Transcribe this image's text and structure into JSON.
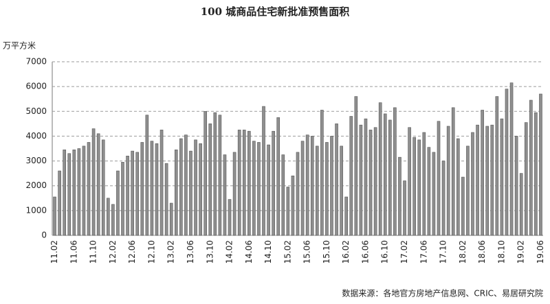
{
  "chart_data": {
    "type": "bar",
    "title": "100 城商品住宅新批准预售面积",
    "y_label": "万平方米",
    "source": "数据来源：各地官方房地产信息网、CRIC、易居研究院",
    "categories": [
      "11.02",
      null,
      null,
      null,
      "11.06",
      null,
      null,
      null,
      "11.10",
      null,
      null,
      null,
      "12.02",
      null,
      null,
      null,
      "12.06",
      null,
      null,
      null,
      "12.10",
      null,
      null,
      null,
      "13.02",
      null,
      null,
      null,
      "13.06",
      null,
      null,
      null,
      "13.10",
      null,
      null,
      null,
      "14.02",
      null,
      null,
      null,
      "14.06",
      null,
      null,
      null,
      "14.10",
      null,
      null,
      null,
      "15.02",
      null,
      null,
      null,
      "15.06",
      null,
      null,
      null,
      "15.10",
      null,
      null,
      null,
      "16.02",
      null,
      null,
      null,
      "16.06",
      null,
      null,
      null,
      "16.10",
      null,
      null,
      null,
      "17.02",
      null,
      null,
      null,
      "17.06",
      null,
      null,
      null,
      "17.10",
      null,
      null,
      null,
      "18.02",
      null,
      null,
      null,
      "18.06",
      null,
      null,
      null,
      "18.10",
      null,
      null,
      null,
      "19.02",
      null,
      null,
      null,
      "19.06"
    ],
    "values": [
      1550,
      2600,
      3450,
      3300,
      3450,
      3500,
      3600,
      3750,
      4300,
      4100,
      3850,
      1500,
      1250,
      2600,
      2950,
      3200,
      3400,
      3350,
      3750,
      4850,
      3800,
      3700,
      4250,
      2900,
      1300,
      3450,
      3900,
      4050,
      3400,
      3850,
      3700,
      5000,
      4500,
      4950,
      4850,
      3250,
      1450,
      3350,
      4250,
      4250,
      4200,
      3800,
      3750,
      5200,
      3650,
      4200,
      4750,
      3250,
      1950,
      2400,
      3350,
      3800,
      4050,
      4000,
      3600,
      5050,
      3750,
      4000,
      4500,
      3600,
      1550,
      4800,
      5600,
      4450,
      4700,
      4250,
      4350,
      5350,
      4900,
      4650,
      5150,
      3150,
      2200,
      4350,
      3950,
      3850,
      4150,
      3550,
      3350,
      4600,
      3000,
      4400,
      5150,
      3900,
      2350,
      3600,
      4150,
      4450,
      5050,
      4400,
      4450,
      5600,
      4700,
      5900,
      6150,
      4000,
      2500,
      4550,
      5450,
      4950,
      5700
    ],
    "color": "#8f8f8f",
    "ylim": [
      0,
      7000
    ],
    "yticks": [
      0,
      1000,
      2000,
      3000,
      4000,
      5000,
      6000,
      7000
    ],
    "grid": true
  }
}
